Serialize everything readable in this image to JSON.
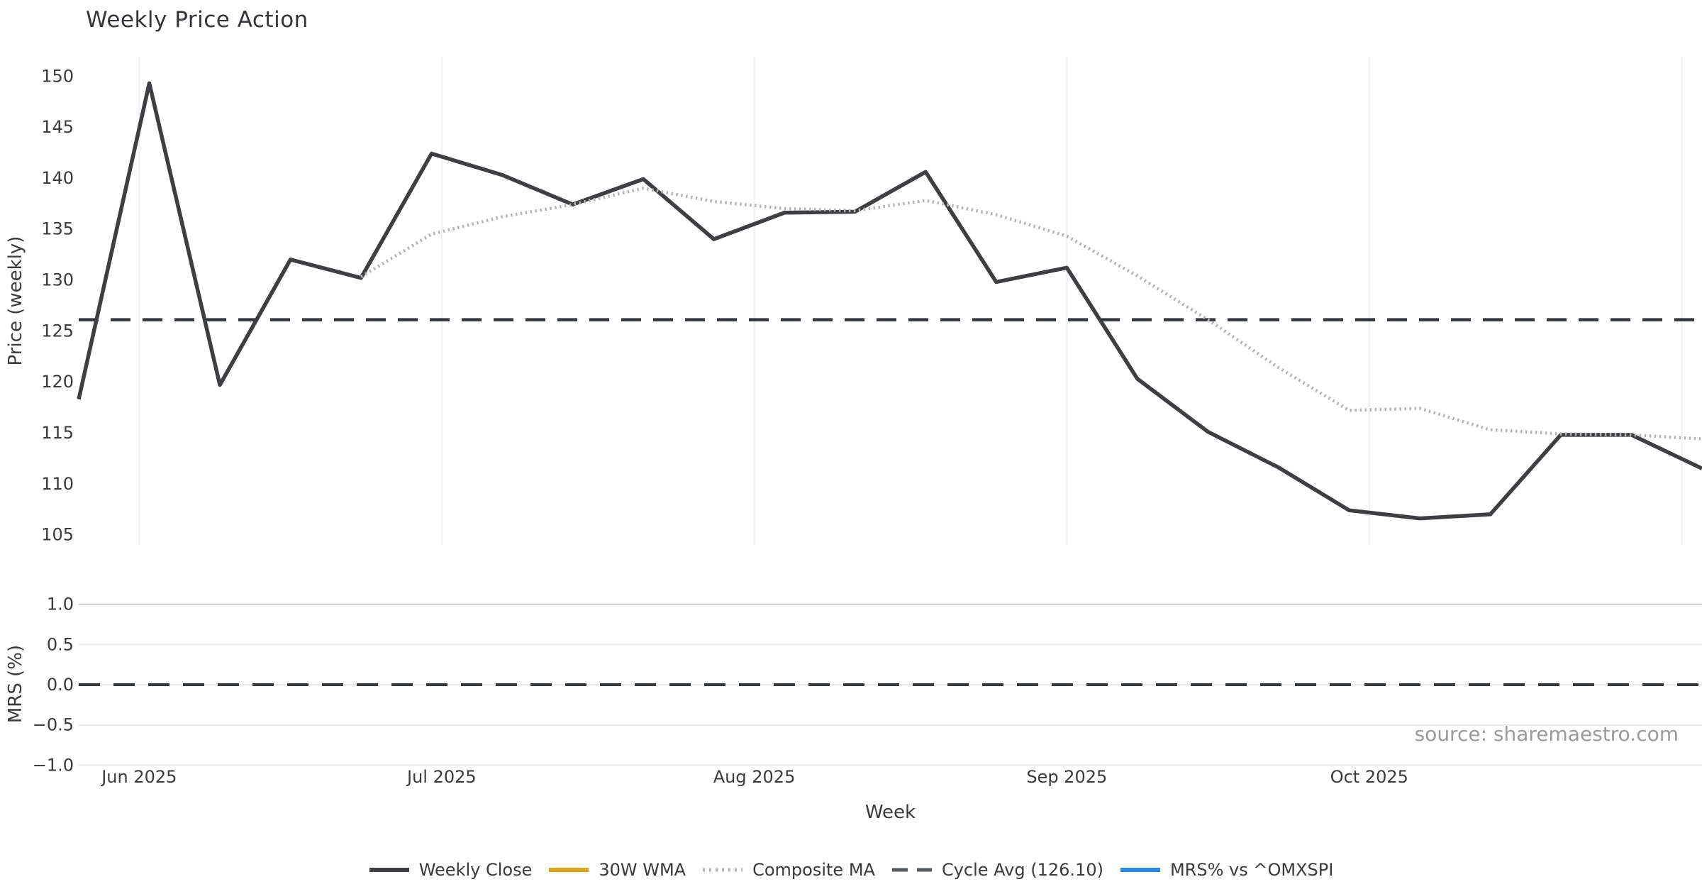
{
  "title": "Weekly Price Action",
  "source_note": "source: sharemaestro.com",
  "xlabel": "Week",
  "colors": {
    "weekly_close": "#3d3f42",
    "wma_30w": "#d9a521",
    "composite_ma": "#b5b5b5",
    "cycle_avg": "#35383c",
    "mrs": "#2e86de",
    "vgrid": "#edf0f2",
    "hgrid": "#e8e8e8",
    "hgrid_strong": "#c7cbcf",
    "tick_text": "#3a3a3a"
  },
  "chart_data": [
    {
      "type": "line",
      "title": "Weekly Price Action",
      "xlabel": "Week",
      "ylabel": "Price (weekly)",
      "ylim": [
        104.0,
        151.9
      ],
      "yticks": [
        105,
        110,
        115,
        120,
        125,
        130,
        135,
        140,
        145,
        150
      ],
      "grid": "vertical-months-only",
      "x_weeks": [
        "2025-05-26",
        "2025-06-02",
        "2025-06-09",
        "2025-06-16",
        "2025-06-23",
        "2025-06-30",
        "2025-07-07",
        "2025-07-14",
        "2025-07-21",
        "2025-07-28",
        "2025-08-04",
        "2025-08-11",
        "2025-08-18",
        "2025-08-25",
        "2025-09-01",
        "2025-09-08",
        "2025-09-15",
        "2025-09-22",
        "2025-09-29",
        "2025-10-06",
        "2025-10-13",
        "2025-10-20",
        "2025-10-27",
        "2025-11-03"
      ],
      "xticks": [
        {
          "label": "Jun 2025",
          "date": "2025-06-01"
        },
        {
          "label": "Jul 2025",
          "date": "2025-07-01"
        },
        {
          "label": "Aug 2025",
          "date": "2025-08-01"
        },
        {
          "label": "Sep 2025",
          "date": "2025-09-01"
        },
        {
          "label": "Oct 2025",
          "date": "2025-10-01"
        },
        {
          "label": "",
          "date": "2025-11-01"
        }
      ],
      "series": [
        {
          "name": "Weekly Close",
          "style": "solid",
          "color": "#3d3f42",
          "values": [
            118.3,
            149.3,
            119.7,
            132.0,
            130.2,
            142.4,
            140.3,
            137.4,
            139.9,
            134.0,
            136.6,
            136.7,
            140.6,
            129.8,
            131.2,
            120.3,
            115.1,
            111.6,
            107.4,
            106.6,
            107.0,
            114.8,
            114.8,
            111.5
          ]
        },
        {
          "name": "30W WMA",
          "style": "solid",
          "color": "#d9a521",
          "values": []
        },
        {
          "name": "Composite MA",
          "style": "dotted",
          "color": "#b5b5b5",
          "values": [
            null,
            null,
            null,
            null,
            130.3,
            134.5,
            136.2,
            137.4,
            139.0,
            137.7,
            137.0,
            136.8,
            137.8,
            136.4,
            134.3,
            130.4,
            126.1,
            121.4,
            117.2,
            117.4,
            115.3,
            114.9,
            114.8,
            114.4
          ]
        },
        {
          "name": "Cycle Avg (126.10)",
          "style": "dashed",
          "color": "#35383c",
          "value": 126.1
        }
      ]
    },
    {
      "type": "line",
      "ylabel": "MRS (%)",
      "ylim": [
        -1.12,
        1.12
      ],
      "yticks": [
        {
          "value": 1.0,
          "label": "1.0"
        },
        {
          "value": 0.5,
          "label": "0.5"
        },
        {
          "value": 0.0,
          "label": "0.0"
        },
        {
          "value": -0.5,
          "label": "−0.5"
        },
        {
          "value": -1.0,
          "label": "−1.0"
        }
      ],
      "grid": "horizontal-only",
      "series": [
        {
          "name": "MRS% vs ^OMXSPI",
          "style": "solid",
          "color": "#2e86de",
          "values": []
        },
        {
          "name": "Zero Line",
          "style": "dashed",
          "color": "#35383c",
          "value": 0.0
        }
      ]
    }
  ],
  "legend": {
    "items": [
      {
        "label": "Weekly Close",
        "style": "solid",
        "color": "#3d3f42"
      },
      {
        "label": "30W WMA",
        "style": "solid",
        "color": "#d9a521"
      },
      {
        "label": "Composite MA",
        "style": "dotted",
        "color": "#b5b5b5"
      },
      {
        "label": "Cycle Avg (126.10)",
        "style": "dashed",
        "color": "#55585c"
      },
      {
        "label": "MRS% vs ^OMXSPI",
        "style": "solid",
        "color": "#2e86de"
      }
    ]
  }
}
